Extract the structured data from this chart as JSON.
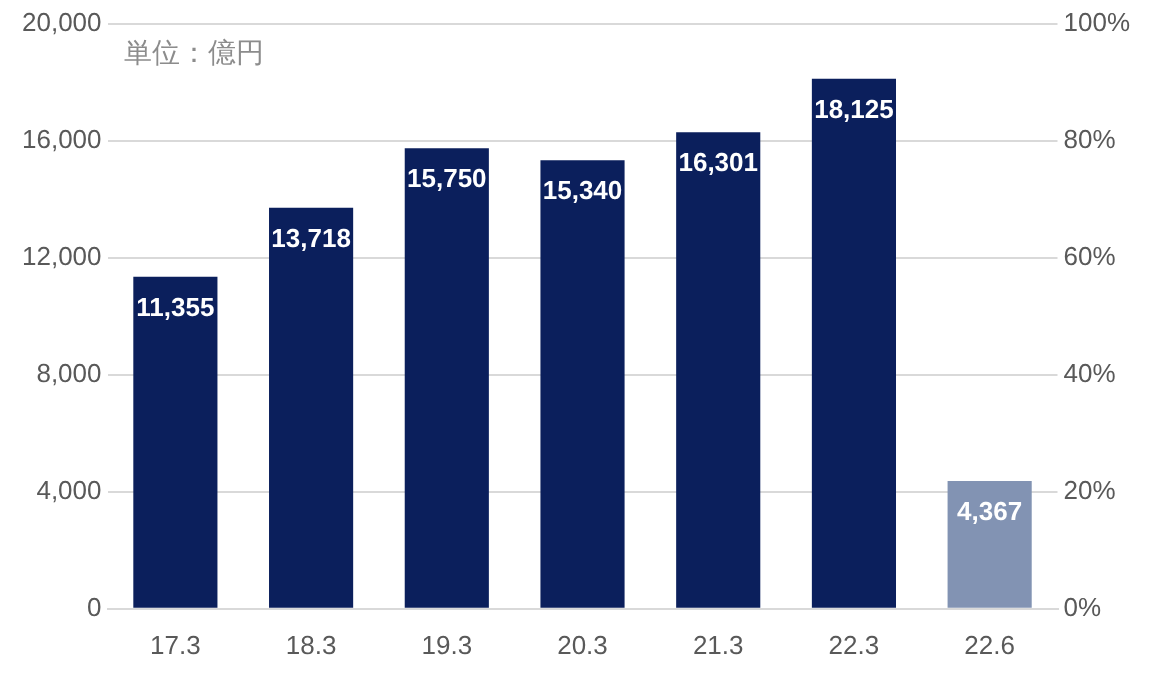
{
  "chart_data": {
    "type": "bar",
    "categories": [
      "17.3",
      "18.3",
      "19.3",
      "20.3",
      "21.3",
      "22.3",
      "22.6"
    ],
    "values": [
      11355,
      13718,
      15750,
      15340,
      16301,
      18125,
      4367
    ],
    "colors": [
      "#0b1f5c",
      "#0b1f5c",
      "#0b1f5c",
      "#0b1f5c",
      "#0b1f5c",
      "#0b1f5c",
      "#8293b3"
    ],
    "value_labels": [
      "11,355",
      "13,718",
      "15,750",
      "15,340",
      "16,301",
      "18,125",
      "4,367"
    ],
    "ylim": [
      0,
      20000
    ],
    "yticks": [
      {
        "value": 0,
        "label": "0"
      },
      {
        "value": 4000,
        "label": "4,000"
      },
      {
        "value": 8000,
        "label": "8,000"
      },
      {
        "value": 12000,
        "label": "12,000"
      },
      {
        "value": 16000,
        "label": "16,000"
      },
      {
        "value": 20000,
        "label": "20,000"
      }
    ],
    "y2lim": [
      0,
      100
    ],
    "y2ticks": [
      {
        "value": 0,
        "label": "0%"
      },
      {
        "value": 20,
        "label": "20%"
      },
      {
        "value": 40,
        "label": "40%"
      },
      {
        "value": 60,
        "label": "60%"
      },
      {
        "value": 80,
        "label": "80%"
      },
      {
        "value": 100,
        "label": "100%"
      }
    ],
    "grid": "y",
    "annotations": [
      "単位：億円"
    ]
  }
}
